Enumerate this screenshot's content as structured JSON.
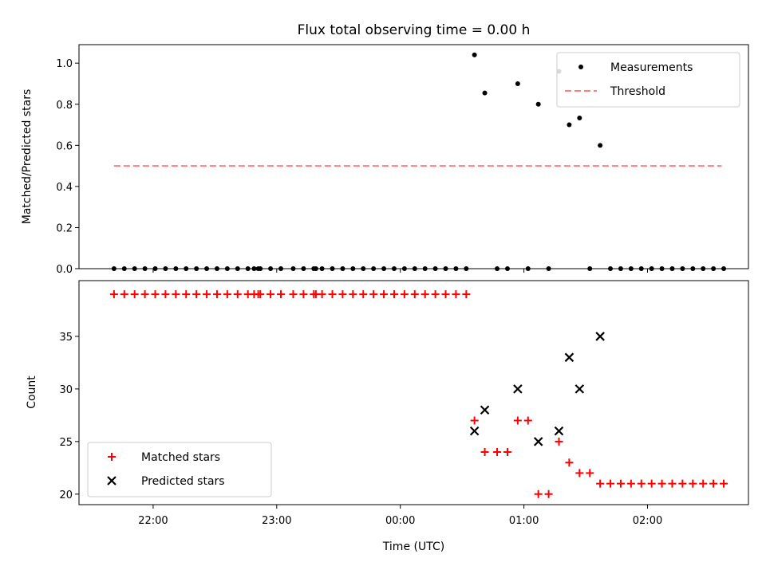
{
  "chart_data": [
    {
      "panel": "top",
      "type": "scatter",
      "title": "Flux total observing time = 0.00 h",
      "xlabel": "",
      "ylabel": "Matched/Predicted stars",
      "xlim": [
        "21:24",
        "02:49"
      ],
      "ylim": [
        0,
        1.09
      ],
      "yticks": [
        "0.0",
        "0.2",
        "0.4",
        "0.6",
        "0.8",
        "1.0"
      ],
      "legend": "top-right",
      "series": [
        {
          "name": "Measurements",
          "color": "#000000",
          "marker": "dot",
          "points": [
            [
              "21:41",
              0.0
            ],
            [
              "21:46",
              0.0
            ],
            [
              "21:51",
              0.0
            ],
            [
              "21:56",
              0.0
            ],
            [
              "22:01",
              0.0
            ],
            [
              "22:06",
              0.0
            ],
            [
              "22:11",
              0.0
            ],
            [
              "22:16",
              0.0
            ],
            [
              "22:21",
              0.0
            ],
            [
              "22:26",
              0.0
            ],
            [
              "22:31",
              0.0
            ],
            [
              "22:36",
              0.0
            ],
            [
              "22:41",
              0.0
            ],
            [
              "22:46",
              0.0
            ],
            [
              "22:51",
              0.0
            ],
            [
              "22:49",
              0.0
            ],
            [
              "22:52",
              0.0
            ],
            [
              "22:57",
              0.0
            ],
            [
              "23:02",
              0.0
            ],
            [
              "23:08",
              0.0
            ],
            [
              "23:13",
              0.0
            ],
            [
              "23:18",
              0.0
            ],
            [
              "23:19",
              0.0
            ],
            [
              "23:22",
              0.0
            ],
            [
              "23:27",
              0.0
            ],
            [
              "23:32",
              0.0
            ],
            [
              "23:37",
              0.0
            ],
            [
              "23:42",
              0.0
            ],
            [
              "23:47",
              0.0
            ],
            [
              "23:52",
              0.0
            ],
            [
              "23:57",
              0.0
            ],
            [
              "00:02",
              0.0
            ],
            [
              "00:07",
              0.0
            ],
            [
              "00:12",
              0.0
            ],
            [
              "00:17",
              0.0
            ],
            [
              "00:22",
              0.0
            ],
            [
              "00:27",
              0.0
            ],
            [
              "00:32",
              0.0
            ],
            [
              "00:36",
              1.04
            ],
            [
              "00:41",
              0.855
            ],
            [
              "00:47",
              0.0
            ],
            [
              "00:52",
              0.0
            ],
            [
              "00:57",
              0.9
            ],
            [
              "01:02",
              0.0
            ],
            [
              "01:07",
              0.8
            ],
            [
              "01:12",
              0.0
            ],
            [
              "01:17",
              0.96
            ],
            [
              "01:22",
              0.7
            ],
            [
              "01:27",
              0.733
            ],
            [
              "01:32",
              0.0
            ],
            [
              "01:37",
              0.6
            ],
            [
              "01:42",
              0.0
            ],
            [
              "01:47",
              0.0
            ],
            [
              "01:52",
              0.0
            ],
            [
              "01:57",
              0.0
            ],
            [
              "02:02",
              0.0
            ],
            [
              "02:07",
              0.0
            ],
            [
              "02:12",
              0.0
            ],
            [
              "02:17",
              0.0
            ],
            [
              "02:22",
              0.0
            ],
            [
              "02:27",
              0.0
            ],
            [
              "02:32",
              0.0
            ],
            [
              "02:37",
              0.0
            ]
          ]
        },
        {
          "name": "Threshold",
          "color": "#ff7f7f",
          "style": "dashed",
          "points": [
            [
              "21:41",
              0.5
            ],
            [
              "02:36",
              0.5
            ]
          ]
        }
      ]
    },
    {
      "panel": "bottom",
      "type": "scatter",
      "title": "",
      "xlabel": "Time (UTC)",
      "ylabel": "Count",
      "xlim": [
        "21:24",
        "02:49"
      ],
      "ylim": [
        19,
        40.3
      ],
      "yticks": [
        "20",
        "25",
        "30",
        "35"
      ],
      "xticks": [
        "22:00",
        "23:00",
        "00:00",
        "01:00",
        "02:00"
      ],
      "legend": "bottom-left",
      "series": [
        {
          "name": "Matched stars",
          "color": "#ff0000",
          "marker": "plus",
          "points": [
            [
              "21:41",
              39
            ],
            [
              "21:46",
              39
            ],
            [
              "21:51",
              39
            ],
            [
              "21:56",
              39
            ],
            [
              "22:01",
              39
            ],
            [
              "22:06",
              39
            ],
            [
              "22:11",
              39
            ],
            [
              "22:16",
              39
            ],
            [
              "22:21",
              39
            ],
            [
              "22:26",
              39
            ],
            [
              "22:31",
              39
            ],
            [
              "22:36",
              39
            ],
            [
              "22:41",
              39
            ],
            [
              "22:46",
              39
            ],
            [
              "22:51",
              39
            ],
            [
              "22:49",
              39
            ],
            [
              "22:52",
              39
            ],
            [
              "22:57",
              39
            ],
            [
              "23:02",
              39
            ],
            [
              "23:08",
              39
            ],
            [
              "23:13",
              39
            ],
            [
              "23:18",
              39
            ],
            [
              "23:19",
              39
            ],
            [
              "23:22",
              39
            ],
            [
              "23:27",
              39
            ],
            [
              "23:32",
              39
            ],
            [
              "23:37",
              39
            ],
            [
              "23:42",
              39
            ],
            [
              "23:47",
              39
            ],
            [
              "23:52",
              39
            ],
            [
              "23:57",
              39
            ],
            [
              "00:02",
              39
            ],
            [
              "00:07",
              39
            ],
            [
              "00:12",
              39
            ],
            [
              "00:17",
              39
            ],
            [
              "00:22",
              39
            ],
            [
              "00:27",
              39
            ],
            [
              "00:32",
              39
            ],
            [
              "00:36",
              27
            ],
            [
              "00:41",
              24
            ],
            [
              "00:47",
              24
            ],
            [
              "00:52",
              24
            ],
            [
              "00:57",
              27
            ],
            [
              "01:02",
              27
            ],
            [
              "01:07",
              20
            ],
            [
              "01:12",
              20
            ],
            [
              "01:17",
              25
            ],
            [
              "01:22",
              23
            ],
            [
              "01:27",
              22
            ],
            [
              "01:32",
              22
            ],
            [
              "01:37",
              21
            ],
            [
              "01:42",
              21
            ],
            [
              "01:47",
              21
            ],
            [
              "01:52",
              21
            ],
            [
              "01:57",
              21
            ],
            [
              "02:02",
              21
            ],
            [
              "02:07",
              21
            ],
            [
              "02:12",
              21
            ],
            [
              "02:17",
              21
            ],
            [
              "02:22",
              21
            ],
            [
              "02:27",
              21
            ],
            [
              "02:32",
              21
            ],
            [
              "02:37",
              21
            ]
          ]
        },
        {
          "name": "Predicted stars",
          "color": "#000000",
          "marker": "x",
          "points": [
            [
              "00:36",
              26
            ],
            [
              "00:41",
              28
            ],
            [
              "00:57",
              30
            ],
            [
              "01:07",
              25
            ],
            [
              "01:17",
              26
            ],
            [
              "01:22",
              33
            ],
            [
              "01:27",
              30
            ],
            [
              "01:37",
              35
            ]
          ]
        }
      ]
    }
  ]
}
